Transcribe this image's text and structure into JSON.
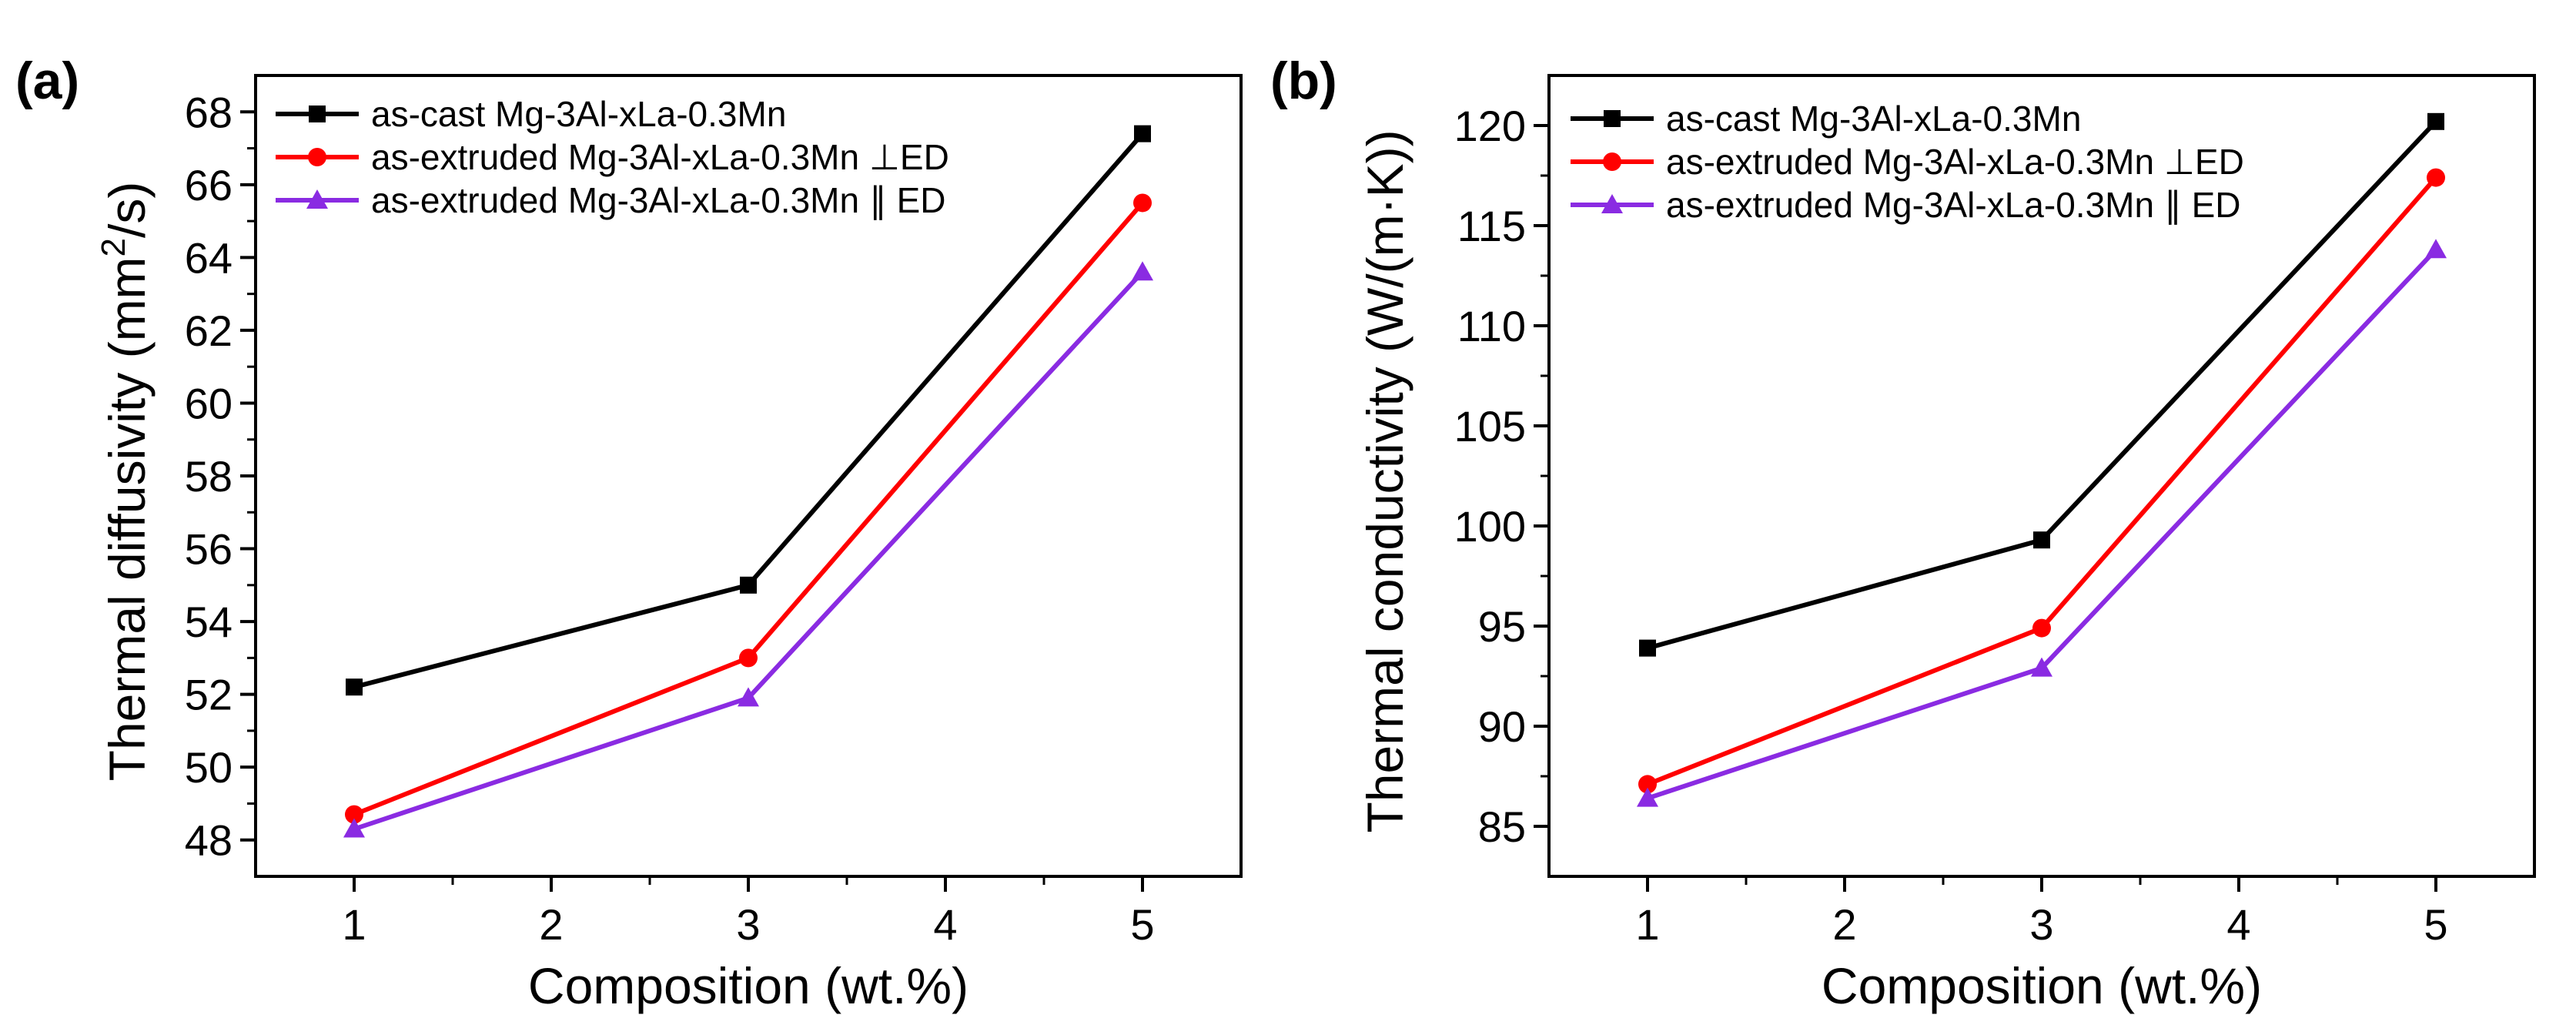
{
  "chart_data": [
    {
      "type": "line",
      "panel_label": "(a)",
      "xlabel": "Composition (wt.%)",
      "ylabel_parts": [
        "Thermal diffusivity (mm",
        "2",
        "/s)"
      ],
      "xlim": [
        0.5,
        5.5
      ],
      "ylim": [
        47,
        69
      ],
      "xticks": [
        1,
        2,
        3,
        4,
        5
      ],
      "yticks": [
        48,
        50,
        52,
        54,
        56,
        58,
        60,
        62,
        64,
        66,
        68
      ],
      "legend_position": "top-left",
      "grid": false,
      "series": [
        {
          "name": "as-cast Mg-3Al-xLa-0.3Mn",
          "color": "#000000",
          "marker": "square",
          "x": [
            1,
            3,
            5
          ],
          "y": [
            52.2,
            55.0,
            67.4
          ]
        },
        {
          "name": "as-extruded Mg-3Al-xLa-0.3Mn ⊥ED",
          "color": "#ff0000",
          "marker": "circle",
          "x": [
            1,
            3,
            5
          ],
          "y": [
            48.7,
            53.0,
            65.5
          ]
        },
        {
          "name": "as-extruded Mg-3Al-xLa-0.3Mn ∥ ED",
          "color": "#8a2be2",
          "marker": "triangle",
          "x": [
            1,
            3,
            5
          ],
          "y": [
            48.3,
            51.9,
            63.6
          ]
        }
      ]
    },
    {
      "type": "line",
      "panel_label": "(b)",
      "xlabel": "Composition (wt.%)",
      "ylabel_parts": [
        "Thermal conductivity (W/(m·K))"
      ],
      "xlim": [
        0.5,
        5.5
      ],
      "ylim": [
        82.5,
        122.5
      ],
      "xticks": [
        1,
        2,
        3,
        4,
        5
      ],
      "yticks": [
        85,
        90,
        95,
        100,
        105,
        110,
        115,
        120
      ],
      "legend_position": "top-left",
      "grid": false,
      "series": [
        {
          "name": "as-cast Mg-3Al-xLa-0.3Mn",
          "color": "#000000",
          "marker": "square",
          "x": [
            1,
            3,
            5
          ],
          "y": [
            93.9,
            99.3,
            120.2
          ]
        },
        {
          "name": "as-extruded Mg-3Al-xLa-0.3Mn ⊥ED",
          "color": "#ff0000",
          "marker": "circle",
          "x": [
            1,
            3,
            5
          ],
          "y": [
            87.1,
            94.9,
            117.4
          ]
        },
        {
          "name": "as-extruded Mg-3Al-xLa-0.3Mn ∥ ED",
          "color": "#8a2be2",
          "marker": "triangle",
          "x": [
            1,
            3,
            5
          ],
          "y": [
            86.4,
            92.9,
            113.8
          ]
        }
      ]
    }
  ]
}
